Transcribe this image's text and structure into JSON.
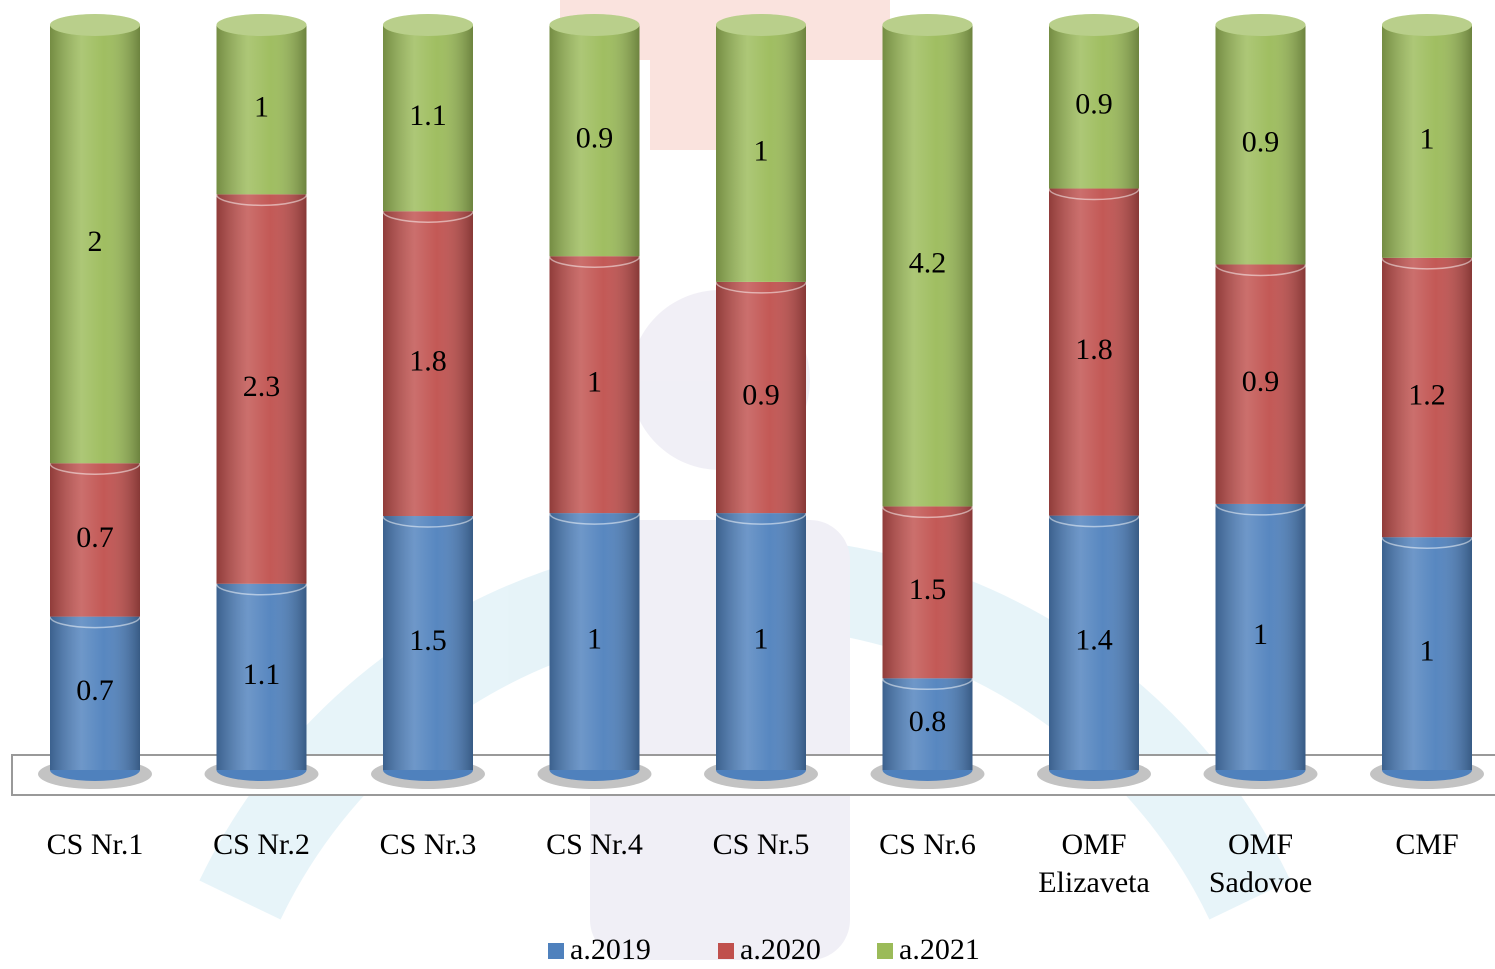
{
  "chart_data": {
    "type": "bar",
    "stacking": "percent",
    "categories": [
      "CS Nr.1",
      "CS Nr.2",
      "CS Nr.3",
      "CS Nr.4",
      "CS Nr.5",
      "CS Nr.6",
      "OMF Elizaveta",
      "OMF Sadovoe",
      "CMF"
    ],
    "series": [
      {
        "name": "a.2019",
        "color": "#4f81bd",
        "values": [
          0.7,
          1.1,
          1.5,
          1,
          1,
          0.8,
          1.4,
          1,
          1
        ]
      },
      {
        "name": "a.2020",
        "color": "#c0504d",
        "values": [
          0.7,
          2.3,
          1.8,
          1,
          0.9,
          1.5,
          1.8,
          0.9,
          1.2
        ]
      },
      {
        "name": "a.2021",
        "color": "#9bbb59",
        "values": [
          2,
          1,
          1.1,
          0.9,
          1,
          4.2,
          0.9,
          0.9,
          1
        ]
      }
    ],
    "legend": "bottom"
  }
}
